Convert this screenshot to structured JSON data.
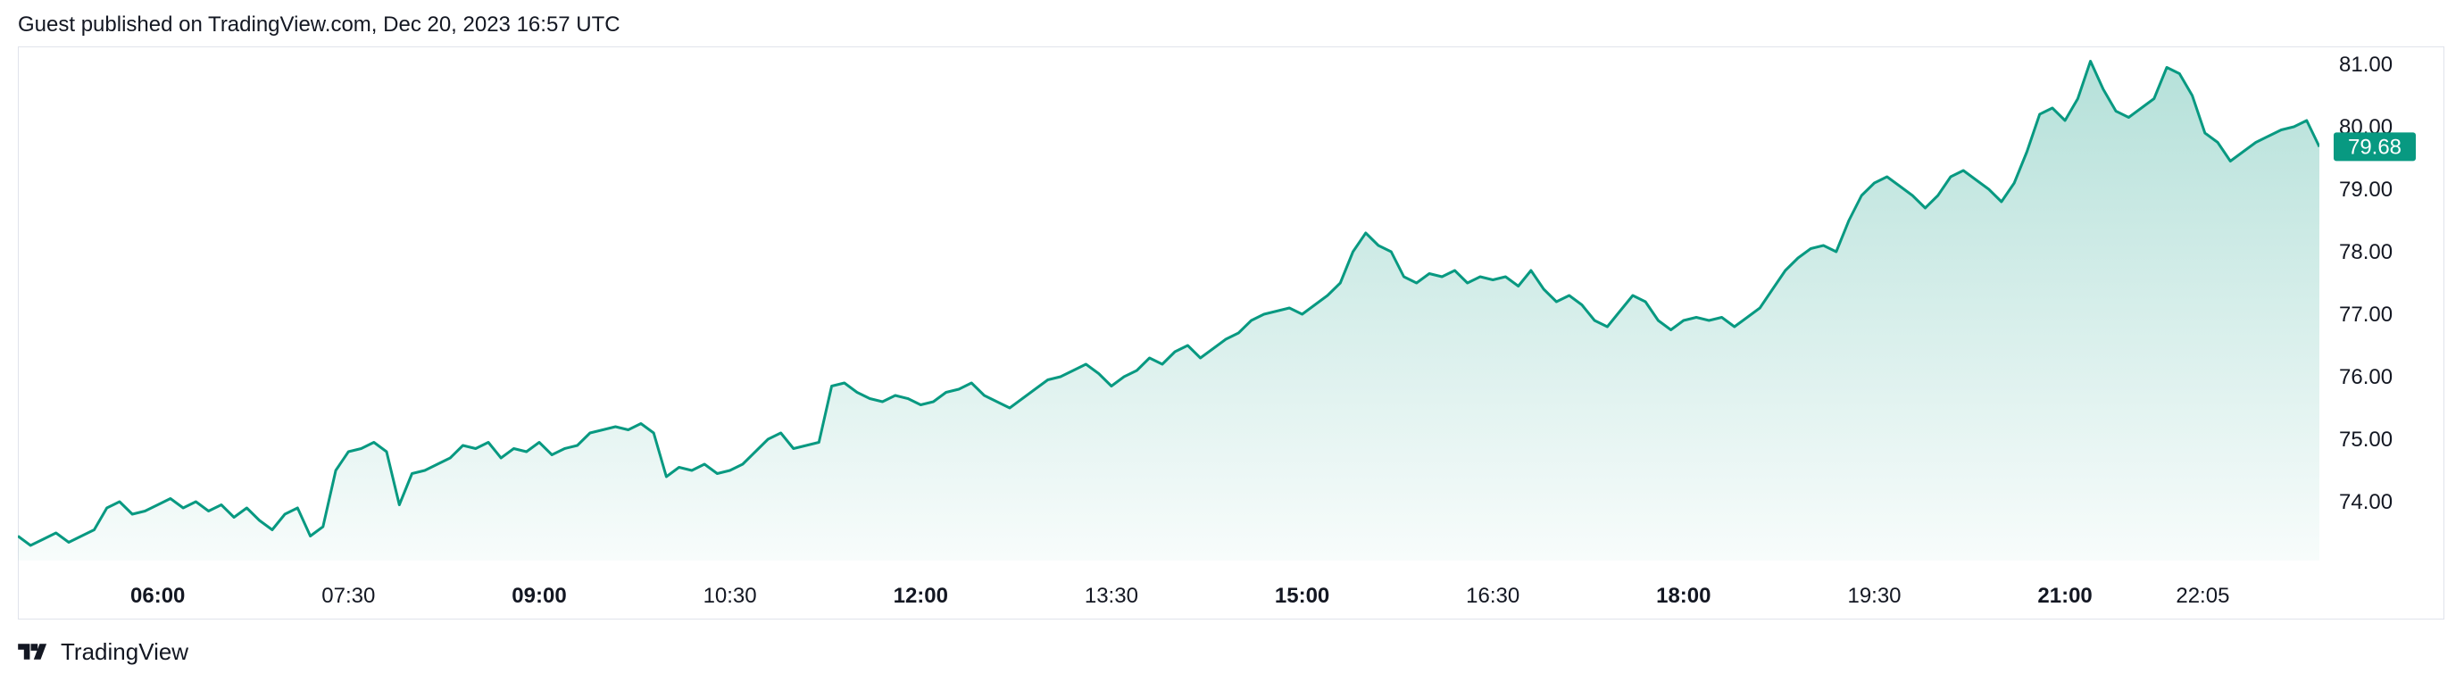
{
  "header": {
    "text": "Guest published on TradingView.com, Dec 20, 2023 16:57 UTC"
  },
  "footer": {
    "brand": "TradingView",
    "logo_icon": "tradingview-logo-icon"
  },
  "colors": {
    "line": "#089981",
    "fill_top": "#089981",
    "badge": "#089981",
    "grid": "#e0e3eb"
  },
  "chart_data": {
    "type": "area",
    "title": "",
    "xlabel": "",
    "ylabel": "",
    "ylim": [
      73.0,
      81.25
    ],
    "y_ticks": [
      "74.00",
      "75.00",
      "76.00",
      "77.00",
      "78.00",
      "79.00",
      "80.00",
      "81.00"
    ],
    "x_ticks": [
      {
        "label": "06:00",
        "t": 6.0,
        "bold": true
      },
      {
        "label": "07:30",
        "t": 7.5,
        "bold": false
      },
      {
        "label": "09:00",
        "t": 9.0,
        "bold": true
      },
      {
        "label": "10:30",
        "t": 10.5,
        "bold": false
      },
      {
        "label": "12:00",
        "t": 12.0,
        "bold": true
      },
      {
        "label": "13:30",
        "t": 13.5,
        "bold": false
      },
      {
        "label": "15:00",
        "t": 15.0,
        "bold": true
      },
      {
        "label": "16:30",
        "t": 16.5,
        "bold": false
      },
      {
        "label": "18:00",
        "t": 18.0,
        "bold": true
      },
      {
        "label": "19:30",
        "t": 19.5,
        "bold": false
      },
      {
        "label": "21:00",
        "t": 21.0,
        "bold": true
      },
      {
        "label": "22:05",
        "t": 22.083,
        "bold": false
      }
    ],
    "last_price": "79.68",
    "series": [
      {
        "x": [
          4.9,
          5.0,
          5.1,
          5.2,
          5.3,
          5.4,
          5.5,
          5.6,
          5.7,
          5.8,
          5.9,
          6.0,
          6.1,
          6.2,
          6.3,
          6.4,
          6.5,
          6.6,
          6.7,
          6.8,
          6.9,
          7.0,
          7.1,
          7.2,
          7.3,
          7.4,
          7.5,
          7.6,
          7.7,
          7.8,
          7.9,
          8.0,
          8.1,
          8.2,
          8.3,
          8.4,
          8.5,
          8.6,
          8.7,
          8.8,
          8.9,
          9.0,
          9.1,
          9.2,
          9.3,
          9.4,
          9.5,
          9.6,
          9.7,
          9.8,
          9.9,
          10.0,
          10.1,
          10.2,
          10.3,
          10.4,
          10.5,
          10.6,
          10.7,
          10.8,
          10.9,
          11.0,
          11.1,
          11.2,
          11.3,
          11.4,
          11.5,
          11.6,
          11.7,
          11.8,
          11.9,
          12.0,
          12.1,
          12.2,
          12.3,
          12.4,
          12.5,
          12.6,
          12.7,
          12.8,
          12.9,
          13.0,
          13.1,
          13.2,
          13.3,
          13.4,
          13.5,
          13.6,
          13.7,
          13.8,
          13.9,
          14.0,
          14.1,
          14.2,
          14.3,
          14.4,
          14.5,
          14.6,
          14.7,
          14.8,
          14.9,
          15.0,
          15.1,
          15.2,
          15.3,
          15.4,
          15.5,
          15.6,
          15.7,
          15.8,
          15.9,
          16.0,
          16.1,
          16.2,
          16.3,
          16.4,
          16.5,
          16.6,
          16.7,
          16.8,
          16.9,
          17.0,
          17.1,
          17.2,
          17.3,
          17.4,
          17.5,
          17.6,
          17.7,
          17.8,
          17.9,
          18.0,
          18.1,
          18.2,
          18.3,
          18.4,
          18.5,
          18.6,
          18.7,
          18.8,
          18.9,
          19.0,
          19.1,
          19.2,
          19.3,
          19.4,
          19.5,
          19.6,
          19.7,
          19.8,
          19.9,
          20.0,
          20.1,
          20.2,
          20.3,
          20.4,
          20.5,
          20.6,
          20.7,
          20.8,
          20.9,
          21.0,
          21.1,
          21.2,
          21.3,
          21.4,
          21.5,
          21.6,
          21.7,
          21.8,
          21.9,
          22.0,
          22.1,
          22.2,
          22.3,
          22.4,
          22.5,
          22.6,
          22.7,
          22.8,
          22.9,
          23.0
        ],
        "values": [
          73.45,
          73.3,
          73.4,
          73.5,
          73.35,
          73.45,
          73.55,
          73.9,
          74.0,
          73.8,
          73.85,
          73.95,
          74.05,
          73.9,
          74.0,
          73.85,
          73.95,
          73.75,
          73.9,
          73.7,
          73.55,
          73.8,
          73.9,
          73.45,
          73.6,
          74.5,
          74.8,
          74.85,
          74.95,
          74.8,
          73.95,
          74.45,
          74.5,
          74.6,
          74.7,
          74.9,
          74.85,
          74.95,
          74.7,
          74.85,
          74.8,
          74.95,
          74.75,
          74.85,
          74.9,
          75.1,
          75.15,
          75.2,
          75.15,
          75.25,
          75.1,
          74.4,
          74.55,
          74.5,
          74.6,
          74.45,
          74.5,
          74.6,
          74.8,
          75.0,
          75.1,
          74.85,
          74.9,
          74.95,
          75.85,
          75.9,
          75.75,
          75.65,
          75.6,
          75.7,
          75.65,
          75.55,
          75.6,
          75.75,
          75.8,
          75.9,
          75.7,
          75.6,
          75.5,
          75.65,
          75.8,
          75.95,
          76.0,
          76.1,
          76.2,
          76.05,
          75.85,
          76.0,
          76.1,
          76.3,
          76.2,
          76.4,
          76.5,
          76.3,
          76.45,
          76.6,
          76.7,
          76.9,
          77.0,
          77.05,
          77.1,
          77.0,
          77.15,
          77.3,
          77.5,
          78.0,
          78.3,
          78.1,
          78.0,
          77.6,
          77.5,
          77.65,
          77.6,
          77.7,
          77.5,
          77.6,
          77.55,
          77.6,
          77.45,
          77.7,
          77.4,
          77.2,
          77.3,
          77.15,
          76.9,
          76.8,
          77.05,
          77.3,
          77.2,
          76.9,
          76.75,
          76.9,
          76.95,
          76.9,
          76.95,
          76.8,
          76.95,
          77.1,
          77.4,
          77.7,
          77.9,
          78.05,
          78.1,
          78.0,
          78.5,
          78.9,
          79.1,
          79.2,
          79.05,
          78.9,
          78.7,
          78.9,
          79.2,
          79.3,
          79.15,
          79.0,
          78.8,
          79.1,
          79.6,
          80.2,
          80.3,
          80.1,
          80.45,
          81.05,
          80.6,
          80.25,
          80.15,
          80.3,
          80.45,
          80.95,
          80.85,
          80.5,
          79.9,
          79.75,
          79.45,
          79.6,
          79.75,
          79.85,
          79.95,
          80.0,
          80.1,
          79.68
        ]
      }
    ]
  }
}
